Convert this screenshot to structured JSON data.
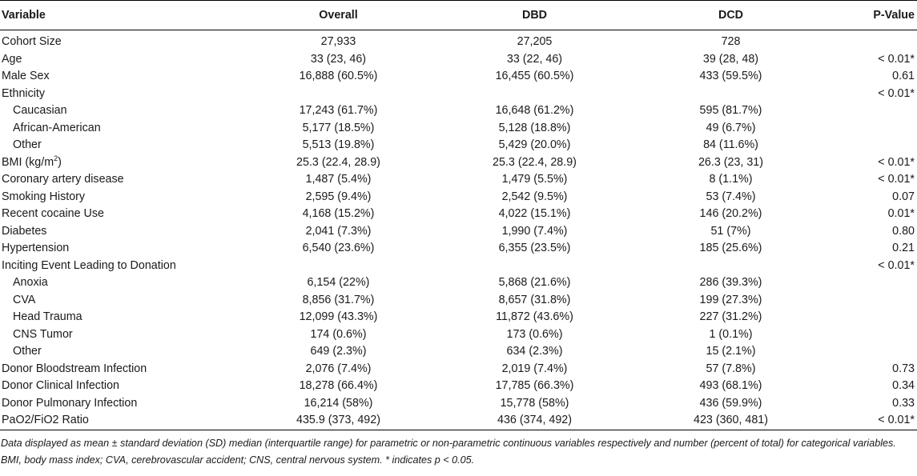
{
  "header": {
    "variable": "Variable",
    "overall": "Overall",
    "dbd": "DBD",
    "dcd": "DCD",
    "pvalue": "P-Value"
  },
  "rows": [
    {
      "label": "Cohort Size",
      "sub": false,
      "overall": "27,933",
      "dbd": "27,205",
      "dcd": "728",
      "p": ""
    },
    {
      "label": "Age",
      "sub": false,
      "overall": "33 (23, 46)",
      "dbd": "33 (22, 46)",
      "dcd": "39 (28, 48)",
      "p": "< 0.01*"
    },
    {
      "label": "Male Sex",
      "sub": false,
      "overall": "16,888 (60.5%)",
      "dbd": "16,455 (60.5%)",
      "dcd": "433 (59.5%)",
      "p": "0.61"
    },
    {
      "label": "Ethnicity",
      "sub": false,
      "overall": "",
      "dbd": "",
      "dcd": "",
      "p": "< 0.01*"
    },
    {
      "label": "Caucasian",
      "sub": true,
      "overall": "17,243 (61.7%)",
      "dbd": "16,648 (61.2%)",
      "dcd": "595 (81.7%)",
      "p": ""
    },
    {
      "label": "African-American",
      "sub": true,
      "overall": "5,177 (18.5%)",
      "dbd": "5,128 (18.8%)",
      "dcd": "49 (6.7%)",
      "p": ""
    },
    {
      "label": "Other",
      "sub": true,
      "overall": "5,513 (19.8%)",
      "dbd": "5,429 (20.0%)",
      "dcd": "84 (11.6%)",
      "p": ""
    },
    {
      "label": "BMI (kg/m",
      "sup": "2",
      "label_tail": ")",
      "sub": false,
      "overall": "25.3 (22.4, 28.9)",
      "dbd": "25.3 (22.4, 28.9)",
      "dcd": "26.3 (23, 31)",
      "p": "< 0.01*"
    },
    {
      "label": "Coronary artery disease",
      "sub": false,
      "overall": "1,487 (5.4%)",
      "dbd": "1,479 (5.5%)",
      "dcd": "8 (1.1%)",
      "p": "< 0.01*"
    },
    {
      "label": "Smoking History",
      "sub": false,
      "overall": "2,595 (9.4%)",
      "dbd": "2,542 (9.5%)",
      "dcd": "53 (7.4%)",
      "p": "0.07"
    },
    {
      "label": "Recent cocaine Use",
      "sub": false,
      "overall": "4,168 (15.2%)",
      "dbd": "4,022 (15.1%)",
      "dcd": "146 (20.2%)",
      "p": "0.01*"
    },
    {
      "label": "Diabetes",
      "sub": false,
      "overall": "2,041 (7.3%)",
      "dbd": "1,990 (7.4%)",
      "dcd": "51 (7%)",
      "p": "0.80"
    },
    {
      "label": "Hypertension",
      "sub": false,
      "overall": "6,540 (23.6%)",
      "dbd": "6,355 (23.5%)",
      "dcd": "185 (25.6%)",
      "p": "0.21"
    },
    {
      "label": "Inciting Event Leading to Donation",
      "sub": false,
      "overall": "",
      "dbd": "",
      "dcd": "",
      "p": "< 0.01*"
    },
    {
      "label": "Anoxia",
      "sub": true,
      "overall": "6,154 (22%)",
      "dbd": "5,868 (21.6%)",
      "dcd": "286 (39.3%)",
      "p": ""
    },
    {
      "label": "CVA",
      "sub": true,
      "overall": "8,856 (31.7%)",
      "dbd": "8,657 (31.8%)",
      "dcd": "199 (27.3%)",
      "p": ""
    },
    {
      "label": "Head Trauma",
      "sub": true,
      "overall": "12,099 (43.3%)",
      "dbd": "11,872 (43.6%)",
      "dcd": "227 (31.2%)",
      "p": ""
    },
    {
      "label": "CNS Tumor",
      "sub": true,
      "overall": "174 (0.6%)",
      "dbd": "173 (0.6%)",
      "dcd": "1 (0.1%)",
      "p": ""
    },
    {
      "label": "Other",
      "sub": true,
      "overall": "649 (2.3%)",
      "dbd": "634 (2.3%)",
      "dcd": "15 (2.1%)",
      "p": ""
    },
    {
      "label": "Donor Bloodstream Infection",
      "sub": false,
      "overall": "2,076 (7.4%)",
      "dbd": "2,019 (7.4%)",
      "dcd": "57 (7.8%)",
      "p": "0.73"
    },
    {
      "label": "Donor Clinical Infection",
      "sub": false,
      "overall": "18,278 (66.4%)",
      "dbd": "17,785 (66.3%)",
      "dcd": "493 (68.1%)",
      "p": "0.34"
    },
    {
      "label": "Donor Pulmonary Infection",
      "sub": false,
      "overall": "16,214 (58%)",
      "dbd": "15,778 (58%)",
      "dcd": "436 (59.9%)",
      "p": "0.33"
    },
    {
      "label": "PaO2/FiO2 Ratio",
      "sub": false,
      "overall": "435.9 (373, 492)",
      "dbd": "436 (374, 492)",
      "dcd": "423 (360, 481)",
      "p": "< 0.01*"
    }
  ],
  "footnote": "Data displayed as mean ± standard deviation (SD) median (interquartile range) for parametric or non-parametric continuous variables respectively and number (percent of total) for categorical variables. BMI, body mass index; CVA, cerebrovascular accident; CNS, central nervous system. * indicates p < 0.05."
}
